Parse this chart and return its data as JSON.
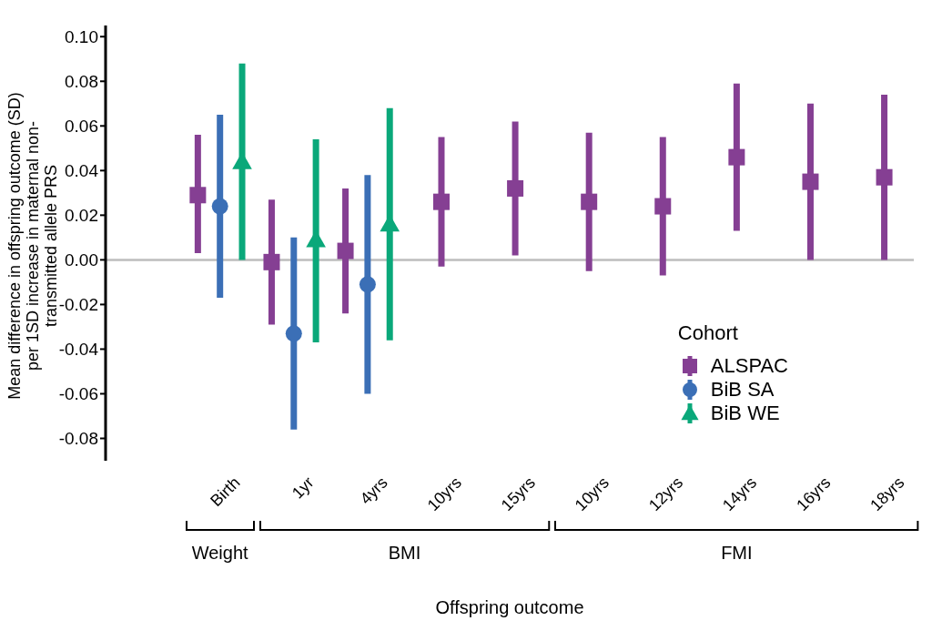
{
  "chart_data": {
    "type": "scatter",
    "xlabel": "Offspring outcome",
    "ylabel": "Mean difference in offspring outcome (SD) per 1SD increase in maternal non-transmitted allele PRS",
    "legend_title": "Cohort",
    "categories": [
      "Birth",
      "1yr",
      "4yrs",
      "10yrs",
      "15yrs",
      "10yrs",
      "12yrs",
      "14yrs",
      "16yrs",
      "18yrs"
    ],
    "series": [
      {
        "name": "ALSPAC",
        "color": "#853f93",
        "marker": "square",
        "values": [
          0.029,
          -0.001,
          0.004,
          0.026,
          0.032,
          0.026,
          0.024,
          0.046,
          0.035,
          0.037
        ],
        "errors": [
          [
            0.003,
            0.056
          ],
          [
            -0.029,
            0.027
          ],
          [
            -0.024,
            0.032
          ],
          [
            -0.003,
            0.055
          ],
          [
            0.002,
            0.062
          ],
          [
            -0.005,
            0.057
          ],
          [
            -0.007,
            0.055
          ],
          [
            0.013,
            0.079
          ],
          [
            0.0,
            0.07
          ],
          [
            0.0,
            0.074
          ]
        ]
      },
      {
        "name": "BiB SA",
        "color": "#3b6fb6",
        "marker": "circle",
        "values": [
          0.024,
          -0.033,
          -0.011,
          null,
          null,
          null,
          null,
          null,
          null,
          null
        ],
        "errors": [
          [
            -0.017,
            0.065
          ],
          [
            -0.076,
            0.01
          ],
          [
            -0.06,
            0.038
          ],
          null,
          null,
          null,
          null,
          null,
          null,
          null
        ]
      },
      {
        "name": "BiB WE",
        "color": "#0aa87a",
        "marker": "triangle",
        "values": [
          0.044,
          0.009,
          0.016,
          null,
          null,
          null,
          null,
          null,
          null,
          null
        ],
        "errors": [
          [
            0.0,
            0.088
          ],
          [
            -0.037,
            0.054
          ],
          [
            -0.036,
            0.068
          ],
          null,
          null,
          null,
          null,
          null,
          null,
          null
        ]
      }
    ],
    "ylim": [
      -0.09,
      0.105
    ],
    "yticks": [
      {
        "value": -0.08,
        "label": "-0.08"
      },
      {
        "value": -0.06,
        "label": "-0.06"
      },
      {
        "value": -0.04,
        "label": "-0.04"
      },
      {
        "value": -0.02,
        "label": "-0.02"
      },
      {
        "value": 0,
        "label": "0.00"
      },
      {
        "value": 0.02,
        "label": "0.02"
      },
      {
        "value": 0.04,
        "label": "0.04"
      },
      {
        "value": 0.06,
        "label": "0.06"
      },
      {
        "value": 0.08,
        "label": "0.08"
      },
      {
        "value": 0.1,
        "label": "0.10"
      }
    ],
    "ref_lines": [
      {
        "axis": "y",
        "value": 0,
        "color": "#bdbdbd"
      }
    ],
    "annotations": [
      "Weight",
      "BMI",
      "FMI"
    ],
    "grid": false,
    "legend": "right"
  }
}
